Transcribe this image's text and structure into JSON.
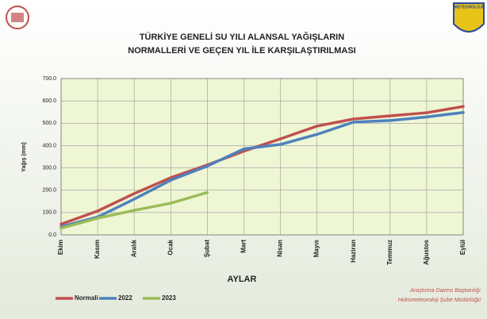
{
  "chart_data": {
    "type": "line",
    "title": "TÜRKİYE GENELİ  SU YILI ALANSAL YAĞIŞLARIN",
    "subtitle": "NORMALLERİ VE GEÇEN YIL İLE KARŞILAŞTIRILMASI",
    "y_label": "Yağış (mm)",
    "x_label": "AYLAR",
    "footer": [
      "Araştırma Dairesi Başkanlığı",
      "Hidrometeoroloji Şube Müdürlüğü"
    ],
    "logo_text": "METEOROLOJİ",
    "categories": [
      "Ekim",
      "Kasım",
      "Aralık",
      "Ocak",
      "Şubat",
      "Mart",
      "Nisan",
      "Mayıs",
      "Haziran",
      "Temmuz",
      "Ağustos",
      "Eylül"
    ],
    "series": [
      {
        "name": "Normali",
        "color": "#c0504d",
        "values": [
          48,
          107,
          185,
          256,
          313,
          375,
          430,
          487,
          519,
          533,
          547,
          575
        ]
      },
      {
        "name": "2022",
        "color": "#4f81bd",
        "values": [
          36,
          80,
          160,
          245,
          308,
          385,
          405,
          450,
          505,
          512,
          528,
          548
        ]
      },
      {
        "name": "2023",
        "color": "#9bbb59",
        "values": [
          30,
          75,
          110,
          142,
          190,
          null,
          null,
          null,
          null,
          null,
          null,
          null
        ]
      }
    ],
    "ylim": [
      0,
      700
    ],
    "yticks": [
      {
        "value": 0,
        "label": "0.0"
      },
      {
        "value": 100,
        "label": "100.0"
      },
      {
        "value": 200,
        "label": "200.0"
      },
      {
        "value": 300,
        "label": "300.0"
      },
      {
        "value": 400,
        "label": "400.0"
      },
      {
        "value": 500,
        "label": "500.0"
      },
      {
        "value": 600,
        "label": "600.0"
      },
      {
        "value": 700,
        "label": "700.0"
      }
    ],
    "grid": true,
    "legend": "bottom-left"
  }
}
